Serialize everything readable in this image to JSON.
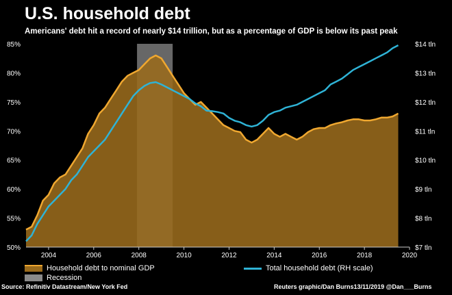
{
  "header": {
    "title": "U.S. household debt",
    "subtitle": "Americans' debt hit a record of nearly $14 trillion, but as a percentage of GDP is below its past peak"
  },
  "legend": {
    "debt_gdp": "Household debt to nominal GDP",
    "recession": "Recession",
    "total_debt": "Total household debt (RH scale)"
  },
  "footer": {
    "source": "Source: Refinitiv Datastream/New York Fed",
    "credit": "Reuters graphic/Dan Burns13/11/2019 @Dan___Burns"
  },
  "colors": {
    "background": "#000000",
    "area_fill": "#9a6b1c",
    "area_line": "#f0a830",
    "total_line": "#2fb3d6",
    "recession": "#8a8a8a"
  },
  "chart_data": {
    "type": "area",
    "x_ticks": [
      "2004",
      "2006",
      "2008",
      "2010",
      "2012",
      "2014",
      "2016",
      "2018",
      "2020"
    ],
    "y_left": {
      "range": [
        50,
        85
      ],
      "ticks": [
        "50%",
        "55%",
        "60%",
        "65%",
        "70%",
        "75%",
        "80%",
        "85%"
      ]
    },
    "y_right": {
      "range": [
        7,
        14
      ],
      "ticks": [
        "$7 tln",
        "$8 tln",
        "$9 tln",
        "$10 tln",
        "$11 tln",
        "$12 tln",
        "$13 tln",
        "$14 tln"
      ]
    },
    "recession": [
      2007.92,
      2009.5
    ],
    "series": [
      {
        "name": "Household debt to nominal GDP",
        "axis": "left",
        "kind": "area",
        "x": [
          2003.0,
          2003.25,
          2003.5,
          2003.75,
          2004.0,
          2004.25,
          2004.5,
          2004.75,
          2005.0,
          2005.25,
          2005.5,
          2005.75,
          2006.0,
          2006.25,
          2006.5,
          2006.75,
          2007.0,
          2007.25,
          2007.5,
          2007.75,
          2008.0,
          2008.25,
          2008.5,
          2008.75,
          2009.0,
          2009.25,
          2009.5,
          2009.75,
          2010.0,
          2010.25,
          2010.5,
          2010.75,
          2011.0,
          2011.25,
          2011.5,
          2011.75,
          2012.0,
          2012.25,
          2012.5,
          2012.75,
          2013.0,
          2013.25,
          2013.5,
          2013.75,
          2014.0,
          2014.25,
          2014.5,
          2014.75,
          2015.0,
          2015.25,
          2015.5,
          2015.75,
          2016.0,
          2016.25,
          2016.5,
          2016.75,
          2017.0,
          2017.25,
          2017.5,
          2017.75,
          2018.0,
          2018.25,
          2018.5,
          2018.75,
          2019.0,
          2019.25,
          2019.5
        ],
        "y": [
          53.0,
          53.5,
          55.5,
          58.0,
          59.0,
          61.0,
          62.0,
          62.5,
          64.0,
          65.5,
          67.0,
          69.5,
          71.0,
          73.0,
          74.0,
          75.5,
          77.0,
          78.5,
          79.5,
          80.0,
          80.5,
          81.5,
          82.5,
          83.0,
          82.5,
          81.0,
          79.5,
          78.0,
          76.5,
          75.5,
          74.5,
          75.0,
          74.0,
          73.0,
          72.0,
          71.0,
          70.5,
          70.0,
          69.8,
          68.5,
          68.0,
          68.5,
          69.5,
          70.5,
          69.5,
          69.0,
          69.5,
          69.0,
          68.5,
          69.0,
          69.8,
          70.3,
          70.5,
          70.5,
          71.0,
          71.3,
          71.5,
          71.8,
          72.0,
          72.0,
          71.8,
          71.8,
          72.0,
          72.3,
          72.3,
          72.5,
          73.0
        ]
      },
      {
        "name": "Total household debt (RH scale)",
        "axis": "right",
        "kind": "line",
        "x": [
          2003.0,
          2003.25,
          2003.5,
          2003.75,
          2004.0,
          2004.25,
          2004.5,
          2004.75,
          2005.0,
          2005.25,
          2005.5,
          2005.75,
          2006.0,
          2006.25,
          2006.5,
          2006.75,
          2007.0,
          2007.25,
          2007.5,
          2007.75,
          2008.0,
          2008.25,
          2008.5,
          2008.75,
          2009.0,
          2009.25,
          2009.5,
          2009.75,
          2010.0,
          2010.25,
          2010.5,
          2010.75,
          2011.0,
          2011.25,
          2011.5,
          2011.75,
          2012.0,
          2012.25,
          2012.5,
          2012.75,
          2013.0,
          2013.25,
          2013.5,
          2013.75,
          2014.0,
          2014.25,
          2014.5,
          2014.75,
          2015.0,
          2015.25,
          2015.5,
          2015.75,
          2016.0,
          2016.25,
          2016.5,
          2016.75,
          2017.0,
          2017.25,
          2017.5,
          2017.75,
          2018.0,
          2018.25,
          2018.5,
          2018.75,
          2019.0,
          2019.25,
          2019.5
        ],
        "y": [
          7.2,
          7.4,
          7.8,
          8.1,
          8.4,
          8.6,
          8.8,
          9.0,
          9.3,
          9.5,
          9.8,
          10.1,
          10.3,
          10.5,
          10.7,
          11.0,
          11.3,
          11.6,
          11.9,
          12.2,
          12.4,
          12.55,
          12.65,
          12.68,
          12.6,
          12.5,
          12.4,
          12.3,
          12.2,
          12.1,
          11.95,
          11.85,
          11.7,
          11.68,
          11.65,
          11.6,
          11.45,
          11.35,
          11.3,
          11.2,
          11.15,
          11.2,
          11.35,
          11.55,
          11.65,
          11.7,
          11.8,
          11.85,
          11.9,
          12.0,
          12.1,
          12.2,
          12.3,
          12.4,
          12.6,
          12.7,
          12.8,
          12.95,
          13.1,
          13.2,
          13.3,
          13.4,
          13.5,
          13.6,
          13.7,
          13.85,
          13.95
        ]
      }
    ]
  }
}
